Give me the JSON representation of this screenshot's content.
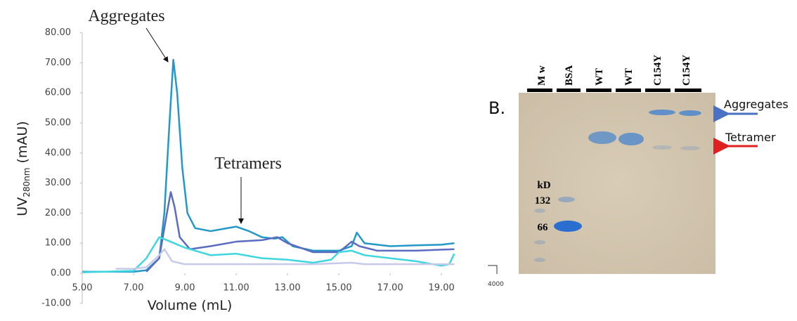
{
  "chart_data": {
    "type": "line",
    "xlabel": "Volume (mL)",
    "ylabel": "UV",
    "ylabel_sub": "280nm",
    "ylabel_suffix": " (mAU)",
    "xlim": [
      5,
      19.9
    ],
    "ylim": [
      -10,
      80
    ],
    "xticks": [
      {
        "value": 5,
        "label": "5.00"
      },
      {
        "value": 7,
        "label": "7.00"
      },
      {
        "value": 9,
        "label": "9.00"
      },
      {
        "value": 11,
        "label": "11.00"
      },
      {
        "value": 13,
        "label": "13.00"
      },
      {
        "value": 15,
        "label": "15.00"
      },
      {
        "value": 17,
        "label": "17.00"
      },
      {
        "value": 19,
        "label": "19.00"
      }
    ],
    "yticks": [
      {
        "value": -10,
        "label": "-10.00"
      },
      {
        "value": 0,
        "label": "0.00"
      },
      {
        "value": 10,
        "label": "10.00"
      },
      {
        "value": 20,
        "label": "20.00"
      },
      {
        "value": 30,
        "label": "30.00"
      },
      {
        "value": 40,
        "label": "40.00"
      },
      {
        "value": 50,
        "label": "50.00"
      },
      {
        "value": 60,
        "label": "60.00"
      },
      {
        "value": 70,
        "label": "70.00"
      },
      {
        "value": 80,
        "label": "80.00"
      }
    ],
    "annotations": [
      "Aggregates",
      "Tetramers"
    ],
    "series": [
      {
        "color": "#2398c8",
        "x": [
          5,
          7,
          7.5,
          8,
          8.2,
          8.4,
          8.55,
          8.7,
          8.9,
          9.1,
          9.4,
          10,
          11,
          11.5,
          12,
          12.5,
          12.8,
          13.2,
          14,
          15,
          15.5,
          15.7,
          16,
          17,
          18,
          19,
          19.5
        ],
        "values": [
          0.5,
          0.5,
          1,
          5,
          20,
          50,
          71,
          60,
          35,
          20,
          15,
          14,
          15.5,
          14,
          12,
          11.5,
          12,
          9,
          7.5,
          7.5,
          9,
          13.5,
          10,
          9,
          9.3,
          9.5,
          10
        ]
      },
      {
        "color": "#5a6bc0",
        "x": [
          7.5,
          8,
          8.3,
          8.45,
          8.6,
          8.8,
          9.2,
          10,
          11,
          12,
          12.6,
          13,
          14,
          15,
          15.5,
          15.8,
          16.5,
          17,
          18,
          19.5
        ],
        "values": [
          0.5,
          5,
          20,
          27,
          22,
          12,
          8,
          9,
          10.5,
          11,
          12,
          10,
          7,
          7,
          10.5,
          9,
          7.5,
          7.5,
          7.5,
          8
        ]
      },
      {
        "color": "#3fd6df",
        "x": [
          5,
          7,
          7.5,
          8,
          8.3,
          9,
          10,
          11,
          12,
          13,
          14,
          14.7,
          15,
          15.5,
          16,
          17,
          18,
          19,
          19.3,
          19.5
        ],
        "values": [
          0.3,
          0.8,
          5,
          12,
          11,
          8.5,
          6,
          6.5,
          5,
          4.5,
          3.5,
          4.5,
          7,
          7.5,
          6,
          5,
          4,
          2.5,
          3,
          6.5
        ]
      },
      {
        "color": "#c6cae8",
        "x": [
          6.3,
          7,
          7.5,
          8,
          8.2,
          8.5,
          9,
          10,
          12,
          14,
          15.5,
          16,
          17,
          19.5
        ],
        "values": [
          1.5,
          1.5,
          2,
          6,
          8,
          4,
          3,
          3,
          3,
          3,
          3.5,
          3,
          3,
          3
        ]
      }
    ]
  },
  "gel": {
    "panel_label": "B.",
    "lanes": [
      "M w",
      "BSA",
      "WT",
      "WT",
      "C154Y",
      "C154Y"
    ],
    "marker_unit": "kD",
    "markers": [
      "132",
      "66"
    ],
    "bands": [
      "Aggregates",
      "Tetramer"
    ],
    "scale_label": "4000"
  }
}
